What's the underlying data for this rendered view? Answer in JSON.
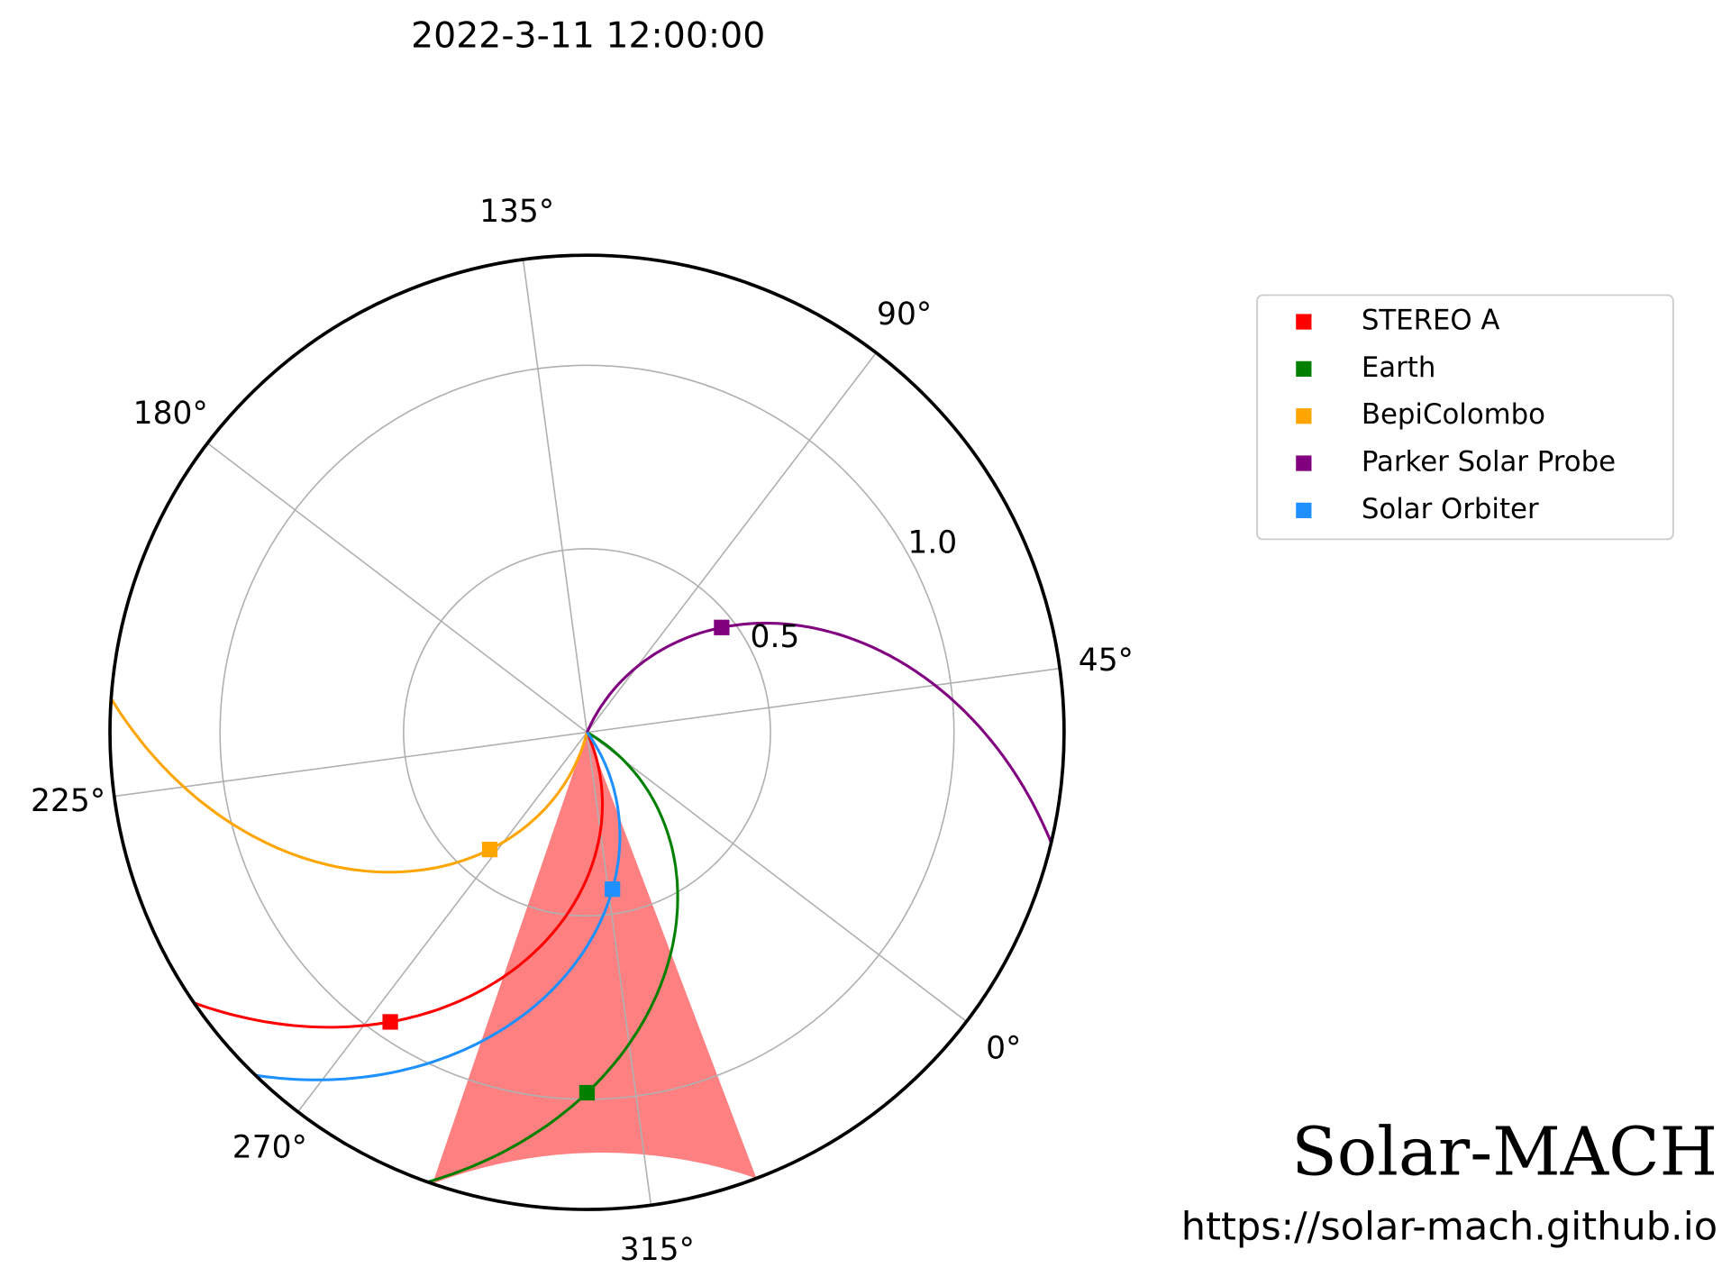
{
  "chart_data": {
    "type": "polar",
    "title": "2022-3-11 12:00:00",
    "rlim": [
      0,
      1.3
    ],
    "rticks": [
      0.5,
      {
        "value": 1,
        "label": "1.0"
      }
    ],
    "thetaticks": [
      {
        "value": 0,
        "label": "0°"
      },
      {
        "value": 45,
        "label": "45°"
      },
      {
        "value": 90,
        "label": "90°"
      },
      {
        "value": 135,
        "label": "135°"
      },
      {
        "value": 180,
        "label": "180°"
      },
      {
        "value": 225,
        "label": "225°"
      },
      {
        "value": 270,
        "label": "270°"
      },
      {
        "value": 315,
        "label": "315°"
      }
    ],
    "grid": true,
    "sector": {
      "lon": [
        288.4,
        328.1
      ],
      "color": "#ff8080"
    },
    "series": [
      {
        "name": "STEREO A",
        "color": "#ff0000",
        "r": 0.954,
        "lon": 273.1
      },
      {
        "name": "Earth",
        "color": "#008000",
        "r": 0.982,
        "lon": 307.3
      },
      {
        "name": "BepiColombo",
        "color": "#ffa500",
        "r": 0.415,
        "lon": 267.6
      },
      {
        "name": "Parker Solar Probe",
        "color": "#800080",
        "r": 0.465,
        "lon": 75.2
      },
      {
        "name": "Solar Orbiter",
        "color": "#1e90ff",
        "r": 0.433,
        "lon": 316.5
      }
    ]
  },
  "brand": "Solar-MACH",
  "url": "https://solar-mach.github.io"
}
